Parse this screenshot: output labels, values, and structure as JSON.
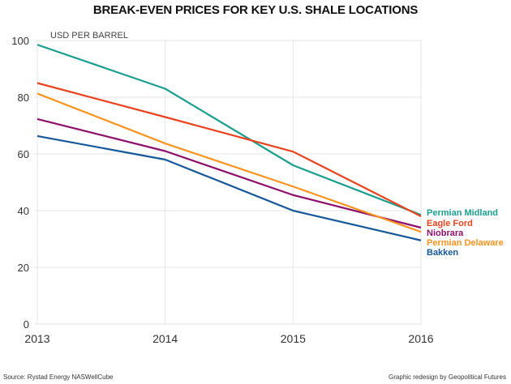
{
  "chart_data": {
    "type": "line",
    "title": "BREAK-EVEN PRICES FOR KEY U.S. SHALE LOCATIONS",
    "ylabel": "USD PER BARREL",
    "xlabel": "",
    "x": [
      "2013",
      "2014",
      "2015",
      "2016"
    ],
    "ylim": [
      0,
      100
    ],
    "yticks": [
      "0",
      "20",
      "40",
      "60",
      "80",
      "100"
    ],
    "grid": true,
    "legend": "right (inline labels at line ends)",
    "series": [
      {
        "name": "Permian Midland",
        "color": "#1a9e8f",
        "values": [
          98.5,
          83,
          56,
          38.5
        ]
      },
      {
        "name": "Eagle Ford",
        "color": "#e8431e",
        "values": [
          85,
          73,
          60.8,
          38
        ]
      },
      {
        "name": "Niobrara",
        "color": "#8e0f6b",
        "values": [
          72.3,
          61,
          45.5,
          34
        ]
      },
      {
        "name": "Permian Delaware",
        "color": "#f7931e",
        "values": [
          81.3,
          63.7,
          48.5,
          32.5
        ]
      },
      {
        "name": "Bakken",
        "color": "#17589a",
        "values": [
          66.3,
          58,
          40,
          29.5
        ]
      }
    ]
  },
  "footer": {
    "source": "Source: Rystad Energy NASWellCube",
    "credit": "Graphic redesign by Geopolitical Futures"
  }
}
